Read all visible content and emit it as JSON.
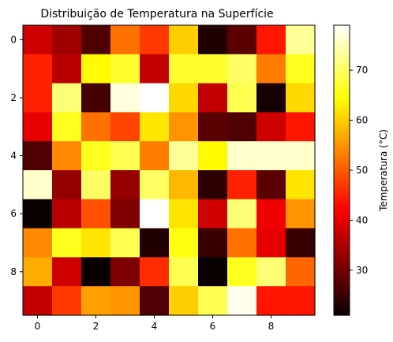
{
  "chart_data": {
    "type": "heatmap",
    "title": "Distribuição de Temperatura na Superfície",
    "xlabel": "",
    "ylabel": "",
    "colormap": "hot",
    "x_ticks": [
      0,
      2,
      4,
      6,
      8
    ],
    "y_ticks": [
      0,
      2,
      4,
      6,
      8
    ],
    "colorbar": {
      "label": "Temperatura (°C)",
      "ticks": [
        30,
        40,
        50,
        60,
        70
      ],
      "range": [
        21,
        79
      ]
    },
    "values": [
      [
        38,
        34,
        27,
        52,
        47,
        60,
        23,
        28,
        44,
        73
      ],
      [
        45,
        36,
        64,
        67,
        37,
        67,
        67,
        70,
        53,
        66
      ],
      [
        45,
        71,
        26,
        77,
        79,
        61,
        37,
        69,
        22,
        61
      ],
      [
        40,
        66,
        52,
        48,
        62,
        55,
        28,
        27,
        38,
        44
      ],
      [
        27,
        54,
        66,
        69,
        53,
        73,
        64,
        76,
        76,
        76
      ],
      [
        76,
        33,
        70,
        33,
        70,
        58,
        24,
        45,
        28,
        62
      ],
      [
        21,
        36,
        49,
        31,
        79,
        62,
        38,
        71,
        41,
        55
      ],
      [
        54,
        66,
        62,
        69,
        23,
        65,
        25,
        52,
        40,
        25
      ],
      [
        57,
        38,
        21,
        31,
        46,
        69,
        21,
        66,
        71,
        51
      ],
      [
        37,
        47,
        56,
        55,
        27,
        60,
        69,
        78,
        44,
        44
      ]
    ]
  }
}
